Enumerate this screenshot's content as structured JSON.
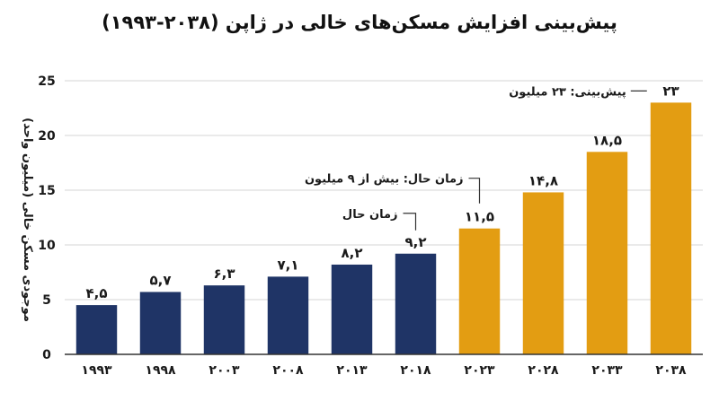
{
  "chart_data": {
    "type": "bar",
    "title": "پیش‌بینی افزایش مسکن‌های خالی در ژاپن (۲۰۳۸-۱۹۹۳)",
    "ylabel": "موجودی مسکن خالی (میلیون واحد)",
    "xlabel": "",
    "ylim": [
      0,
      25
    ],
    "yticks": [
      0,
      5,
      10,
      15,
      20,
      25
    ],
    "ytick_labels": [
      "0",
      "5",
      "10",
      "15",
      "20",
      "25"
    ],
    "grid": true,
    "categories": [
      "۱۹۹۳",
      "۱۹۹۸",
      "۲۰۰۳",
      "۲۰۰۸",
      "۲۰۱۳",
      "۲۰۱۸",
      "۲۰۲۳",
      "۲۰۲۸",
      "۲۰۳۳",
      "۲۰۳۸"
    ],
    "values": [
      4.5,
      5.7,
      6.3,
      7.1,
      8.2,
      9.2,
      11.5,
      14.8,
      18.5,
      23
    ],
    "value_labels": [
      "۴,۵",
      "۵,۷",
      "۶,۳",
      "۷,۱",
      "۸,۲",
      "۹,۲",
      "۱۱,۵",
      "۱۴,۸",
      "۱۸,۵",
      "۲۳"
    ],
    "bar_kinds": [
      "actual",
      "actual",
      "actual",
      "actual",
      "actual",
      "actual",
      "forecast",
      "forecast",
      "forecast",
      "forecast"
    ],
    "colors": {
      "actual": "#1f3466",
      "forecast": "#e39d12",
      "grid": "#d4d4d4",
      "axis": "#333333"
    },
    "annotations": [
      {
        "text": "زمان حال",
        "bar_index": 5
      },
      {
        "text": "زمان حال: بیش از ۹ میلیون",
        "bar_index": 6
      },
      {
        "text": "پیش‌بینی: ۲۳ میلیون",
        "bar_index": 9
      }
    ]
  }
}
